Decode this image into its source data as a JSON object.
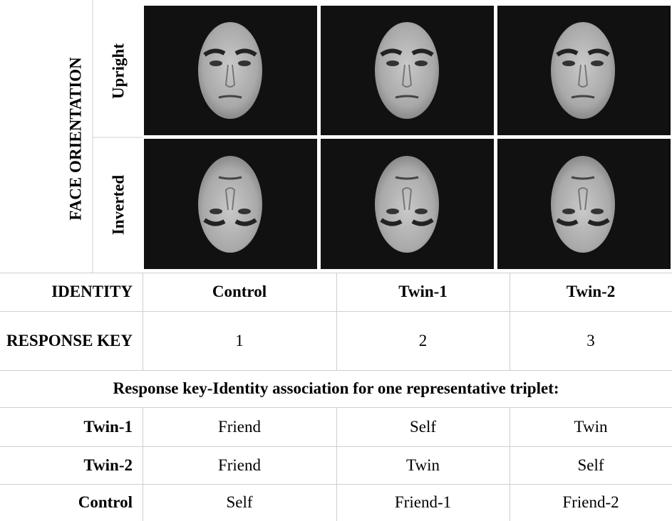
{
  "orientation": {
    "title": "FACE ORIENTATION",
    "rows": [
      "Upright",
      "Inverted"
    ]
  },
  "table": {
    "header": [
      "IDENTITY",
      "Control",
      "Twin-1",
      "Twin-2"
    ],
    "response_key": {
      "label": "RESPONSE KEY",
      "values": [
        1,
        2,
        3
      ]
    },
    "caption": "Response key-Identity association for one representative triplet:",
    "rows": [
      [
        "Twin-1",
        "Friend",
        "Self",
        "Twin"
      ],
      [
        "Twin-2",
        "Friend",
        "Twin",
        "Self"
      ],
      [
        "Control",
        "Self",
        "Friend-1",
        "Friend-2"
      ]
    ]
  }
}
